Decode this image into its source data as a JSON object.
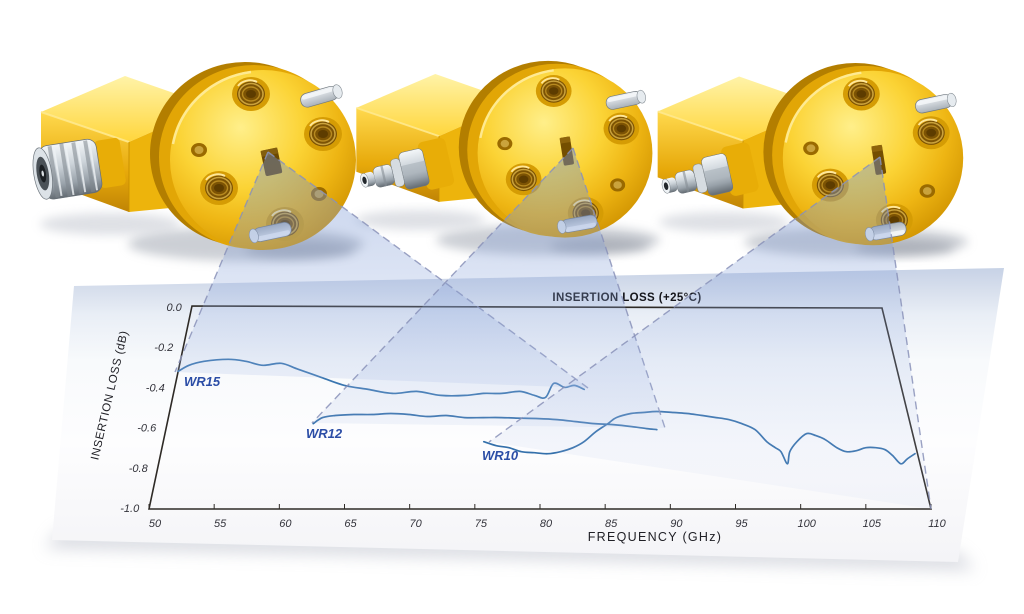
{
  "figure": {
    "adapters": [
      {
        "id": "wr15",
        "illustration": "right-angle-waveguide-to-coax-adapter-large-connector"
      },
      {
        "id": "wr12",
        "illustration": "right-angle-waveguide-to-coax-adapter-small-connector"
      },
      {
        "id": "wr10",
        "illustration": "right-angle-waveguide-to-coax-adapter-small-connector"
      }
    ]
  },
  "colors": {
    "trace": "#3470ab",
    "label_blue": "#2b4da6",
    "gold": "#f5c41a",
    "callout_fill": "#7f9bd4",
    "axis": "#2e2a26"
  },
  "chart_data": {
    "type": "line",
    "title": "INSERTION LOSS (+25°C)",
    "xlabel": "FREQUENCY  (GHz)",
    "ylabel": "INSERTION LOSS (dB)",
    "xlim": [
      50,
      110
    ],
    "ylim": [
      -1.0,
      0.0
    ],
    "grid": false,
    "legend_position": "inline-trace-labels",
    "x_ticks": [
      50,
      55,
      60,
      65,
      70,
      75,
      80,
      85,
      90,
      95,
      100,
      105,
      110
    ],
    "y_ticks": [
      "0.0",
      "-0.2",
      "-0.4",
      "-0.6",
      "-0.8",
      "-1.0"
    ],
    "series": [
      {
        "name": "WR15",
        "color": "#3a76b0",
        "x": [
          50,
          50.8,
          52,
          54,
          55.5,
          57,
          58.5,
          60,
          62,
          64,
          66,
          68,
          70,
          72,
          74,
          75.5,
          77,
          78.5,
          79.7,
          80.6,
          81.3,
          82.2,
          83,
          83.8
        ],
        "y": [
          -0.32,
          -0.29,
          -0.27,
          -0.26,
          -0.27,
          -0.29,
          -0.28,
          -0.31,
          -0.35,
          -0.39,
          -0.41,
          -0.43,
          -0.42,
          -0.44,
          -0.44,
          -0.43,
          -0.43,
          -0.42,
          -0.44,
          -0.45,
          -0.38,
          -0.4,
          -0.39,
          -0.41
        ]
      },
      {
        "name": "WR12",
        "color": "#3470ab",
        "x": [
          61.8,
          62.5,
          63.5,
          65,
          66.5,
          68,
          69.5,
          71,
          72.5,
          74,
          75.5,
          77,
          78.5,
          80,
          81.5,
          83,
          84.5,
          86,
          87.5,
          88.7,
          89.5
        ],
        "y": [
          -0.58,
          -0.55,
          -0.54,
          -0.535,
          -0.535,
          -0.53,
          -0.535,
          -0.545,
          -0.54,
          -0.55,
          -0.55,
          -0.55,
          -0.553,
          -0.555,
          -0.56,
          -0.57,
          -0.58,
          -0.585,
          -0.595,
          -0.605,
          -0.61
        ]
      },
      {
        "name": "WR10",
        "color": "#3470ab",
        "x": [
          75.6,
          76.6,
          77.6,
          78.6,
          79.6,
          80.7,
          81.7,
          82.7,
          83.6,
          84.6,
          85.6,
          86.3,
          87.5,
          88.5,
          89.6,
          91,
          92.1,
          93.3,
          94.4,
          95.4,
          96.4,
          97.4,
          98.2,
          98.8,
          99.2,
          99.55,
          99.9,
          100.6,
          101.5,
          102.2,
          102.9,
          103.7,
          104.4,
          105.2,
          106,
          106.8,
          107.5,
          108,
          108.5,
          109.1,
          109.8
        ],
        "y": [
          -0.67,
          -0.69,
          -0.7,
          -0.72,
          -0.725,
          -0.73,
          -0.72,
          -0.7,
          -0.67,
          -0.62,
          -0.58,
          -0.55,
          -0.53,
          -0.525,
          -0.52,
          -0.525,
          -0.53,
          -0.54,
          -0.55,
          -0.56,
          -0.58,
          -0.61,
          -0.67,
          -0.7,
          -0.72,
          -0.78,
          -0.72,
          -0.67,
          -0.63,
          -0.64,
          -0.66,
          -0.7,
          -0.72,
          -0.715,
          -0.7,
          -0.7,
          -0.71,
          -0.74,
          -0.78,
          -0.755,
          -0.73
        ]
      }
    ]
  }
}
